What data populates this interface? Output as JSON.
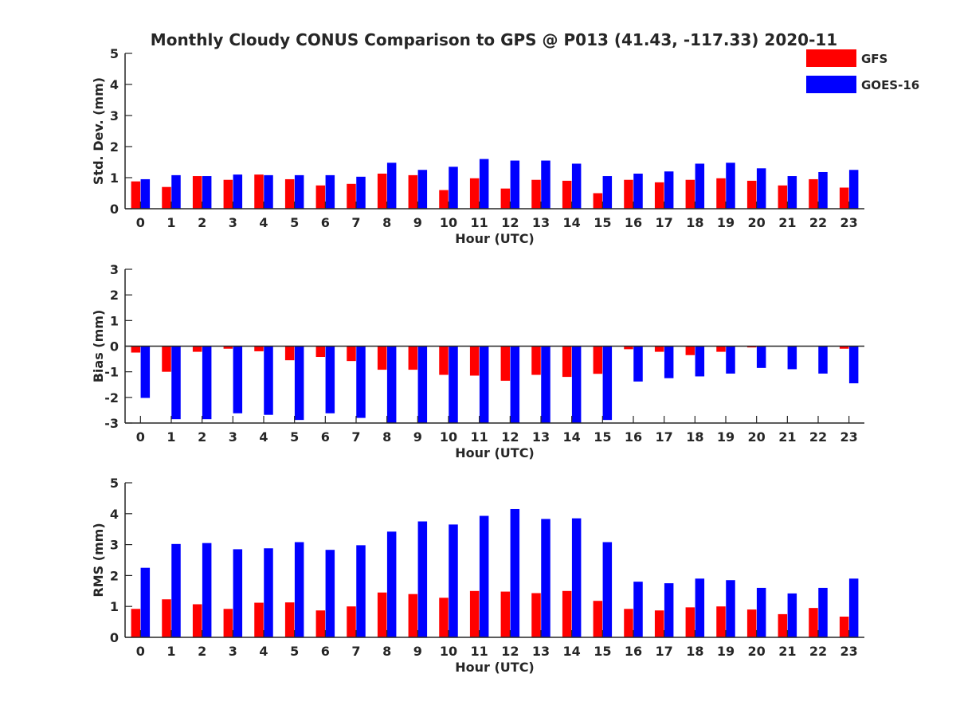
{
  "figure_title": "Monthly Cloudy CONUS Comparison to GPS @ P013 (41.43, -117.33) 2020-11",
  "legend": {
    "placement": "top-right",
    "entries": [
      {
        "label": "GFS",
        "color": "#ff0000"
      },
      {
        "label": "GOES-16",
        "color": "#0000ff"
      }
    ]
  },
  "chart_data": [
    {
      "type": "bar",
      "title": "Monthly Cloudy CONUS Comparison to GPS @ P013 (41.43, -117.33) 2020-11",
      "xlabel": "Hour (UTC)",
      "ylabel": "Std. Dev. (mm)",
      "ylim": [
        0,
        5
      ],
      "yticks": [
        0,
        1,
        2,
        3,
        4,
        5
      ],
      "grid": false,
      "categories": [
        "0",
        "1",
        "2",
        "3",
        "4",
        "5",
        "6",
        "7",
        "8",
        "9",
        "10",
        "11",
        "12",
        "13",
        "14",
        "15",
        "16",
        "17",
        "18",
        "19",
        "20",
        "21",
        "22",
        "23"
      ],
      "series": [
        {
          "name": "GFS",
          "color": "#ff0000",
          "values": [
            0.88,
            0.7,
            1.05,
            0.93,
            1.1,
            0.95,
            0.75,
            0.8,
            1.13,
            1.08,
            0.6,
            0.98,
            0.65,
            0.93,
            0.9,
            0.5,
            0.93,
            0.85,
            0.93,
            0.98,
            0.9,
            0.75,
            0.95,
            0.68
          ]
        },
        {
          "name": "GOES-16",
          "color": "#0000ff",
          "values": [
            0.95,
            1.08,
            1.05,
            1.1,
            1.08,
            1.08,
            1.08,
            1.03,
            1.48,
            1.25,
            1.35,
            1.6,
            1.55,
            1.55,
            1.45,
            1.05,
            1.13,
            1.2,
            1.45,
            1.48,
            1.3,
            1.05,
            1.18,
            1.25
          ]
        }
      ]
    },
    {
      "type": "bar",
      "xlabel": "Hour (UTC)",
      "ylabel": "Bias (mm)",
      "ylim": [
        -3,
        3
      ],
      "yticks": [
        -3,
        -2,
        -1,
        0,
        1,
        2,
        3
      ],
      "grid": false,
      "zero_line": true,
      "categories": [
        "0",
        "1",
        "2",
        "3",
        "4",
        "5",
        "6",
        "7",
        "8",
        "9",
        "10",
        "11",
        "12",
        "13",
        "14",
        "15",
        "16",
        "17",
        "18",
        "19",
        "20",
        "21",
        "22",
        "23"
      ],
      "series": [
        {
          "name": "GFS",
          "color": "#ff0000",
          "values": [
            -0.25,
            -1.0,
            -0.22,
            -0.1,
            -0.2,
            -0.55,
            -0.42,
            -0.58,
            -0.92,
            -0.92,
            -1.12,
            -1.15,
            -1.35,
            -1.12,
            -1.2,
            -1.08,
            -0.12,
            -0.22,
            -0.35,
            -0.22,
            -0.05,
            0.0,
            0.0,
            -0.1
          ]
        },
        {
          "name": "GOES-16",
          "color": "#0000ff",
          "values": [
            -2.02,
            -2.85,
            -2.85,
            -2.62,
            -2.68,
            -2.88,
            -2.62,
            -2.8,
            -3.0,
            -3.0,
            -3.0,
            -3.0,
            -3.0,
            -3.0,
            -3.0,
            -2.88,
            -1.38,
            -1.25,
            -1.18,
            -1.07,
            -0.85,
            -0.9,
            -1.07,
            -1.45
          ]
        }
      ]
    },
    {
      "type": "bar",
      "xlabel": "Hour (UTC)",
      "ylabel": "RMS (mm)",
      "ylim": [
        0,
        5
      ],
      "yticks": [
        0,
        1,
        2,
        3,
        4,
        5
      ],
      "grid": false,
      "categories": [
        "0",
        "1",
        "2",
        "3",
        "4",
        "5",
        "6",
        "7",
        "8",
        "9",
        "10",
        "11",
        "12",
        "13",
        "14",
        "15",
        "16",
        "17",
        "18",
        "19",
        "20",
        "21",
        "22",
        "23"
      ],
      "series": [
        {
          "name": "GFS",
          "color": "#ff0000",
          "values": [
            0.92,
            1.23,
            1.07,
            0.92,
            1.12,
            1.13,
            0.87,
            1.0,
            1.45,
            1.4,
            1.28,
            1.5,
            1.48,
            1.43,
            1.5,
            1.18,
            0.92,
            0.87,
            0.97,
            1.0,
            0.9,
            0.75,
            0.95,
            0.67
          ]
        },
        {
          "name": "GOES-16",
          "color": "#0000ff",
          "values": [
            2.25,
            3.02,
            3.05,
            2.85,
            2.88,
            3.08,
            2.83,
            2.98,
            3.42,
            3.75,
            3.65,
            3.93,
            4.15,
            3.83,
            3.85,
            3.08,
            1.8,
            1.75,
            1.9,
            1.85,
            1.6,
            1.42,
            1.6,
            1.9
          ]
        }
      ]
    }
  ]
}
